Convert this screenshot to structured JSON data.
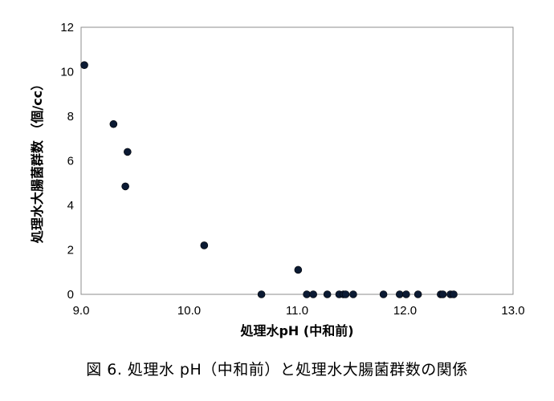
{
  "caption": "図 6.  処理水 pH（中和前）と処理水大腸菌群数の関係",
  "chart_data": {
    "type": "scatter",
    "xlabel": "処理水pH (中和前)",
    "ylabel": "処理水大腸菌群数 （個/cc）",
    "xlim": [
      9.0,
      13.0
    ],
    "ylim": [
      0,
      12
    ],
    "xticks": [
      "9.0",
      "10.0",
      "11.0",
      "12.0",
      "13.0"
    ],
    "yticks": [
      "0",
      "2",
      "4",
      "6",
      "8",
      "10",
      "12"
    ],
    "grid": false,
    "marker_color": "#0b1a33",
    "points": [
      {
        "x": 9.03,
        "y": 10.3
      },
      {
        "x": 9.3,
        "y": 7.65
      },
      {
        "x": 9.43,
        "y": 6.4
      },
      {
        "x": 9.41,
        "y": 4.85
      },
      {
        "x": 10.14,
        "y": 2.2
      },
      {
        "x": 11.01,
        "y": 1.1
      },
      {
        "x": 10.67,
        "y": 0
      },
      {
        "x": 11.09,
        "y": 0
      },
      {
        "x": 11.15,
        "y": 0
      },
      {
        "x": 11.28,
        "y": 0
      },
      {
        "x": 11.39,
        "y": 0
      },
      {
        "x": 11.43,
        "y": 0
      },
      {
        "x": 11.45,
        "y": 0
      },
      {
        "x": 11.52,
        "y": 0
      },
      {
        "x": 11.8,
        "y": 0
      },
      {
        "x": 11.95,
        "y": 0
      },
      {
        "x": 12.01,
        "y": 0
      },
      {
        "x": 12.12,
        "y": 0
      },
      {
        "x": 12.33,
        "y": 0
      },
      {
        "x": 12.35,
        "y": 0
      },
      {
        "x": 12.42,
        "y": 0
      },
      {
        "x": 12.45,
        "y": 0
      }
    ]
  }
}
